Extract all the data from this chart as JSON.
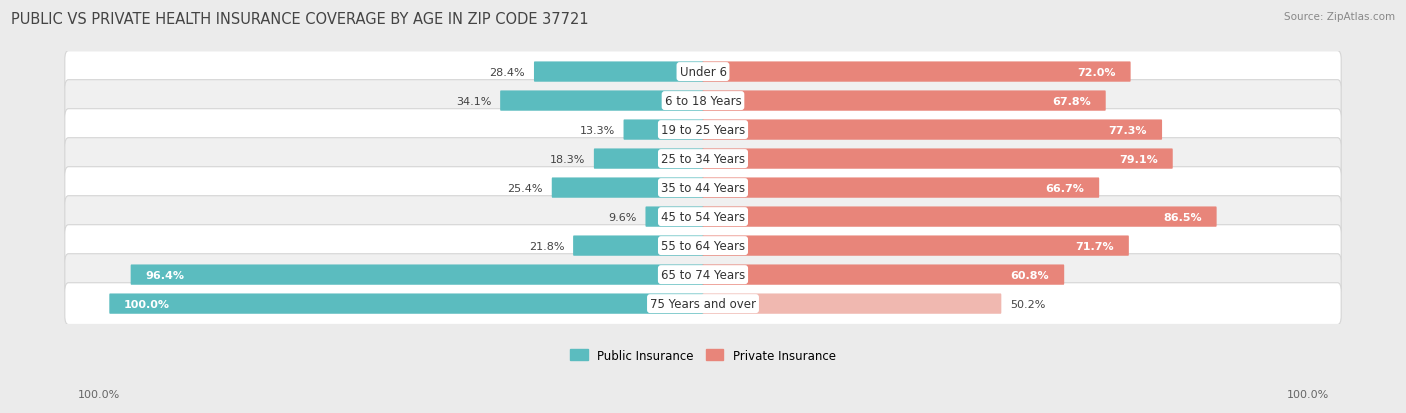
{
  "title": "PUBLIC VS PRIVATE HEALTH INSURANCE COVERAGE BY AGE IN ZIP CODE 37721",
  "source": "Source: ZipAtlas.com",
  "categories": [
    "Under 6",
    "6 to 18 Years",
    "19 to 25 Years",
    "25 to 34 Years",
    "35 to 44 Years",
    "45 to 54 Years",
    "55 to 64 Years",
    "65 to 74 Years",
    "75 Years and over"
  ],
  "public_values": [
    28.4,
    34.1,
    13.3,
    18.3,
    25.4,
    9.6,
    21.8,
    96.4,
    100.0
  ],
  "private_values": [
    72.0,
    67.8,
    77.3,
    79.1,
    66.7,
    86.5,
    71.7,
    60.8,
    50.2
  ],
  "public_color": "#5bbcbf",
  "private_color": "#e8857a",
  "private_color_pale": "#f0b8b0",
  "bg_color": "#ebebeb",
  "row_colors": [
    "#ffffff",
    "#f0f0f0",
    "#ffffff",
    "#f0f0f0",
    "#ffffff",
    "#f0f0f0",
    "#ffffff",
    "#f0f0f0",
    "#ffffff"
  ],
  "max_value": 100.0,
  "legend_public": "Public Insurance",
  "legend_private": "Private Insurance",
  "title_fontsize": 10.5,
  "label_fontsize": 8.5,
  "value_fontsize": 8.0,
  "axis_label_left": "100.0%",
  "axis_label_right": "100.0%"
}
